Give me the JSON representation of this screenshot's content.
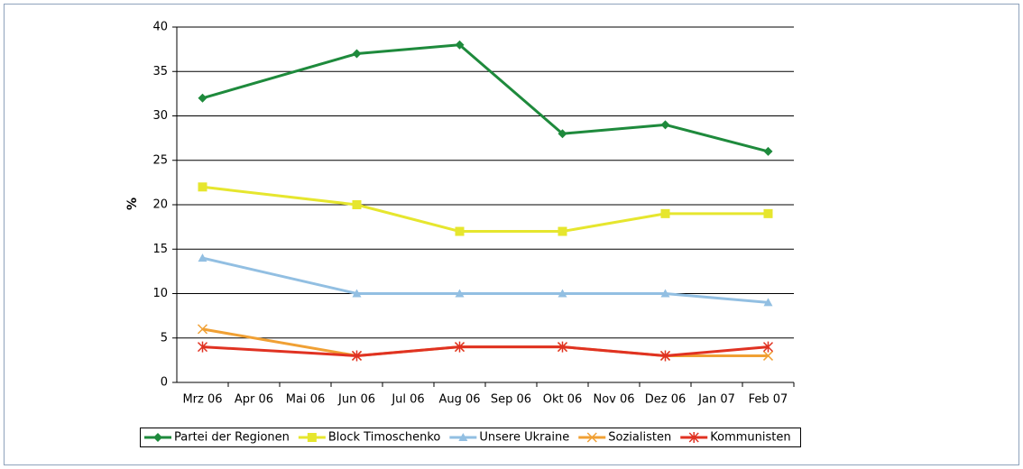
{
  "chart_data": {
    "type": "line",
    "ylabel": "%",
    "categories": [
      "Mrz 06",
      "Apr 06",
      "Mai 06",
      "Jun 06",
      "Jul 06",
      "Aug 06",
      "Sep 06",
      "Okt 06",
      "Nov 06",
      "Dez 06",
      "Jan 07",
      "Feb 07"
    ],
    "ylim": [
      0,
      40
    ],
    "yticks": [
      0,
      5,
      10,
      15,
      20,
      25,
      30,
      35,
      40
    ],
    "grid": true,
    "legend": "bottom",
    "series": [
      {
        "name": "Partei der Regionen",
        "color": "#1e8a3c",
        "marker": "diamond",
        "values": [
          32,
          null,
          null,
          37,
          null,
          38,
          null,
          28,
          null,
          29,
          null,
          26
        ]
      },
      {
        "name": "Block Timoschenko",
        "color": "#e6e62e",
        "marker": "square",
        "values": [
          22,
          null,
          null,
          20,
          null,
          17,
          null,
          17,
          null,
          19,
          null,
          19
        ]
      },
      {
        "name": "Unsere Ukraine",
        "color": "#92bfe2",
        "marker": "triangle",
        "values": [
          14,
          null,
          null,
          10,
          null,
          10,
          null,
          10,
          null,
          10,
          null,
          9
        ]
      },
      {
        "name": "Sozialisten",
        "color": "#f0a034",
        "marker": "x",
        "values": [
          6,
          null,
          null,
          3,
          null,
          4,
          null,
          4,
          null,
          3,
          null,
          3
        ]
      },
      {
        "name": "Kommunisten",
        "color": "#e03222",
        "marker": "star",
        "values": [
          4,
          null,
          null,
          3,
          null,
          4,
          null,
          4,
          null,
          3,
          null,
          4
        ]
      }
    ]
  }
}
